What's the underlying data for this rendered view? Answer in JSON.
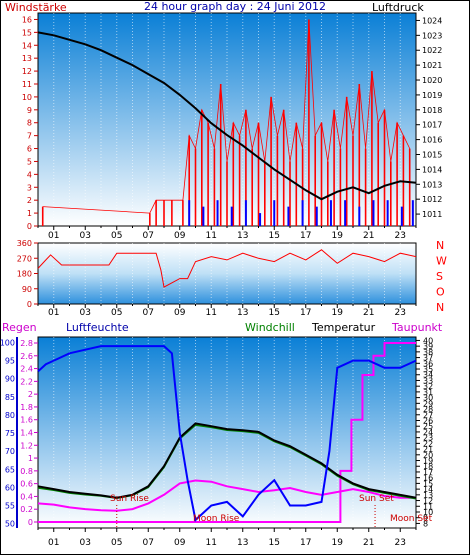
{
  "title": "24 hour graph day : 24 Juni 2012",
  "hour_labels": [
    "01",
    "03",
    "05",
    "07",
    "09",
    "11",
    "13",
    "15",
    "17",
    "19",
    "21",
    "23"
  ],
  "colors": {
    "wind": "#ff0000",
    "gust": "#0000ff",
    "pressure": "#000000",
    "direction": "#ff0000",
    "rain": "#ff00ff",
    "humidity": "#0000ff",
    "windchill": "#008000",
    "temperature": "#000000",
    "dewpoint": "#ff00ff",
    "axis_left": "#cc0000",
    "axis_pressure": "#000000",
    "axis_humidity": "#0000cc",
    "axis_rain": "#cc00cc",
    "axis_temp": "#000000",
    "sky_top": "#0a7fd6",
    "sky_bottom": "#ffffff"
  },
  "chart_data": [
    {
      "type": "line",
      "name": "wind-pressure",
      "labels": {
        "left": "Windstärke",
        "right": "Luftdruck"
      },
      "left_ticks": [
        0,
        1,
        2,
        3,
        4,
        5,
        6,
        7,
        8,
        9,
        10,
        11,
        12,
        13,
        14,
        15,
        16
      ],
      "right_ticks": [
        1011,
        1012,
        1013,
        1014,
        1015,
        1016,
        1017,
        1018,
        1019,
        1020,
        1021,
        1022,
        1023,
        1024
      ],
      "left_range": [
        0,
        16.5
      ],
      "right_range": [
        1010.2,
        1024.5
      ],
      "series": [
        {
          "key": "pressure",
          "x": [
            0,
            1,
            2,
            3,
            4,
            5,
            6,
            7,
            8,
            9,
            10,
            11,
            12,
            13,
            14,
            15,
            16,
            17,
            18,
            19,
            20,
            21,
            22,
            23,
            24
          ],
          "values": [
            1023.2,
            1023.0,
            1022.7,
            1022.4,
            1022.0,
            1021.5,
            1021.0,
            1020.4,
            1019.8,
            1019.0,
            1018.1,
            1017.1,
            1016.3,
            1015.6,
            1014.8,
            1014.0,
            1013.3,
            1012.6,
            1012.0,
            1012.5,
            1012.8,
            1012.4,
            1012.9,
            1013.2,
            1013.1
          ]
        },
        {
          "key": "wind",
          "description": "bars",
          "x": [
            0.3,
            7.1,
            7.5,
            8.0,
            8.5,
            9.2,
            9.6,
            10.0,
            10.4,
            10.8,
            11.2,
            11.6,
            12.0,
            12.4,
            12.8,
            13.2,
            13.6,
            14.0,
            14.4,
            14.8,
            15.2,
            15.6,
            16.0,
            16.4,
            16.8,
            17.2,
            17.6,
            18.0,
            18.4,
            18.8,
            19.2,
            19.6,
            20.0,
            20.4,
            20.8,
            21.2,
            21.6,
            22.0,
            22.4,
            22.8,
            23.2,
            23.6
          ],
          "values": [
            1.5,
            1,
            2,
            2,
            2,
            2,
            7,
            6,
            9,
            8,
            6,
            11,
            5,
            8,
            7,
            9,
            6,
            8,
            5,
            10,
            7,
            9,
            5,
            8,
            6,
            16,
            7,
            8,
            5,
            9,
            6,
            10,
            7,
            11,
            6,
            12,
            8,
            9,
            5,
            8,
            7,
            6
          ]
        },
        {
          "key": "gust",
          "description": "bars",
          "x": [
            9.6,
            10.5,
            11.4,
            12.3,
            13.2,
            14.1,
            15.0,
            15.9,
            16.8,
            17.7,
            18.6,
            19.5,
            20.4,
            21.3,
            22.2,
            23.1,
            23.8
          ],
          "values": [
            2,
            1.5,
            2,
            1.5,
            2,
            1,
            2,
            1.5,
            2,
            1.5,
            2,
            2,
            1.5,
            2,
            2,
            1.5,
            2
          ]
        }
      ]
    },
    {
      "type": "line",
      "name": "wind-direction",
      "left_ticks": [
        0,
        90,
        180,
        270,
        360
      ],
      "right_labels": [
        "N",
        "W",
        "S",
        "O",
        "N"
      ],
      "range": [
        0,
        360
      ],
      "series": [
        {
          "key": "direction",
          "x": [
            0,
            0.5,
            0.8,
            1.5,
            2.0,
            4.5,
            5.0,
            7.5,
            7.8,
            8.0,
            9.0,
            9.5,
            10,
            11,
            12,
            13,
            14,
            15,
            16,
            17,
            18,
            19,
            20,
            21,
            22,
            23,
            24
          ],
          "values": [
            210,
            260,
            290,
            230,
            230,
            230,
            300,
            300,
            200,
            100,
            150,
            150,
            250,
            280,
            260,
            300,
            270,
            250,
            300,
            260,
            320,
            240,
            300,
            280,
            250,
            300,
            280
          ]
        }
      ]
    },
    {
      "type": "line",
      "name": "temp-humidity",
      "labels": {
        "rain": "Regen",
        "humidity": "Luftfeuchte",
        "windchill": "Windchill",
        "temperature": "Temperatur",
        "dewpoint": "Taupunkt"
      },
      "humidity_ticks": [
        50,
        55,
        60,
        65,
        70,
        75,
        80,
        85,
        90,
        95,
        100
      ],
      "rain_ticks": [
        0,
        0.2,
        0.4,
        0.6,
        0.8,
        1,
        1.2,
        1.4,
        1.6,
        1.8,
        2,
        2.2,
        2.4,
        2.6,
        2.8
      ],
      "temp_ticks": [
        8,
        9,
        10,
        11,
        12,
        13,
        14,
        15,
        16,
        17,
        18,
        19,
        20,
        21,
        22,
        23,
        24,
        25,
        26,
        27,
        28,
        29,
        30,
        31,
        32,
        33,
        34,
        35,
        36,
        37,
        38,
        39,
        40
      ],
      "humidity_range": [
        48.8,
        101.5
      ],
      "temp_range": [
        7.2,
        40.6
      ],
      "annotations": [
        "Sun Rise",
        "Moon Rise",
        "Sun Set",
        "Moon Set"
      ],
      "series": [
        {
          "key": "humidity",
          "x": [
            0,
            0.5,
            1,
            2,
            3,
            4,
            5,
            6,
            7,
            8,
            8.5,
            9.0,
            9.5,
            10,
            11,
            12,
            13,
            14,
            15,
            16,
            17,
            18,
            18.5,
            19,
            20,
            21,
            22,
            23,
            24
          ],
          "values": [
            92,
            94,
            95,
            97,
            98,
            99,
            99,
            99,
            99,
            99,
            97,
            75,
            62,
            51,
            55,
            56,
            52,
            58,
            62,
            55,
            55,
            56,
            70,
            93,
            95,
            95,
            93,
            93,
            95
          ]
        },
        {
          "key": "temperature",
          "x": [
            0,
            1,
            2,
            3,
            4,
            5,
            6,
            7,
            8,
            9,
            10,
            11,
            12,
            13,
            14,
            15,
            16,
            17,
            18,
            19,
            20,
            21,
            22,
            23,
            24
          ],
          "values": [
            14.5,
            14.0,
            13.5,
            13.2,
            12.9,
            12.5,
            13.0,
            14.5,
            18.0,
            23.0,
            25.5,
            25.0,
            24.5,
            24.3,
            24.0,
            22.5,
            21.5,
            20.0,
            18.5,
            16.5,
            15.0,
            14.0,
            13.5,
            13.0,
            12.5
          ]
        },
        {
          "key": "windchill",
          "x": [
            0,
            1,
            2,
            3,
            4,
            5,
            6,
            7,
            8,
            9,
            10,
            11,
            12,
            13,
            14,
            15,
            16,
            17,
            18,
            19,
            20,
            21,
            22,
            23,
            24
          ],
          "values": [
            14.2,
            13.8,
            13.3,
            13.0,
            12.8,
            12.4,
            12.9,
            14.3,
            17.8,
            22.8,
            25.2,
            24.8,
            24.3,
            24.1,
            23.8,
            22.3,
            21.3,
            19.8,
            18.3,
            16.3,
            14.8,
            13.8,
            13.3,
            12.8,
            12.3
          ]
        },
        {
          "key": "dewpoint",
          "x": [
            0,
            1,
            2,
            3,
            4,
            5,
            6,
            7,
            8,
            9,
            10,
            11,
            12,
            13,
            14,
            15,
            16,
            17,
            18,
            19,
            20,
            21,
            22,
            23,
            24
          ],
          "values": [
            11.5,
            11.3,
            10.8,
            10.5,
            10.3,
            10.2,
            10.5,
            11.5,
            13.0,
            15.0,
            15.5,
            15.3,
            14.5,
            14.0,
            13.5,
            13.8,
            14.2,
            13.5,
            13.0,
            13.5,
            14.0,
            13.5,
            12.8,
            12.5,
            12.5
          ]
        },
        {
          "key": "rain",
          "description": "step",
          "x": [
            0,
            18.5,
            19.2,
            19.9,
            20.6,
            21.3,
            22.0,
            24
          ],
          "values": [
            0,
            0,
            0.8,
            1.6,
            2.3,
            2.6,
            2.8,
            2.8
          ]
        }
      ]
    }
  ]
}
